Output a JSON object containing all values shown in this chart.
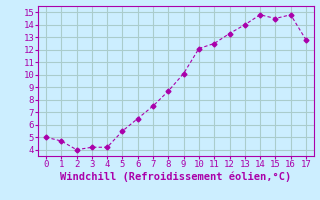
{
  "x": [
    0,
    1,
    2,
    3,
    4,
    5,
    6,
    7,
    8,
    9,
    10,
    11,
    12,
    13,
    14,
    15,
    16,
    17
  ],
  "y": [
    5.0,
    4.7,
    4.0,
    4.2,
    4.2,
    5.5,
    6.5,
    7.5,
    8.7,
    10.1,
    12.1,
    12.5,
    13.3,
    14.0,
    14.8,
    14.5,
    14.8,
    12.8
  ],
  "line_color": "#aa00aa",
  "marker": "D",
  "marker_size": 2.5,
  "xlabel": "Windchill (Refroidissement éolien,°C)",
  "xlim": [
    -0.5,
    17.5
  ],
  "ylim": [
    3.5,
    15.5
  ],
  "xticks": [
    0,
    1,
    2,
    3,
    4,
    5,
    6,
    7,
    8,
    9,
    10,
    11,
    12,
    13,
    14,
    15,
    16,
    17
  ],
  "yticks": [
    4,
    5,
    6,
    7,
    8,
    9,
    10,
    11,
    12,
    13,
    14,
    15
  ],
  "bg_color": "#cceeff",
  "grid_color": "#aacccc",
  "xlabel_fontsize": 7.5,
  "tick_fontsize": 6.5
}
